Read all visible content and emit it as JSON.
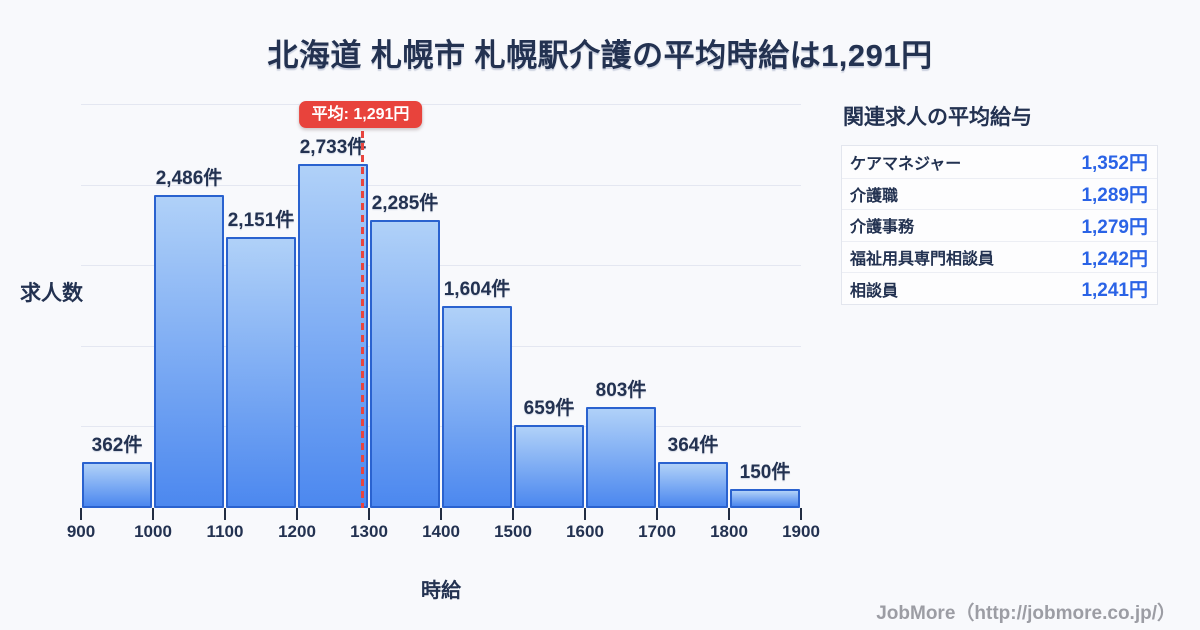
{
  "title": "北海道 札幌市 札幌駅介護の平均時給は1,291円",
  "chart_data": {
    "type": "bar",
    "subtype": "histogram",
    "title": "北海道 札幌市 札幌駅介護の平均時給は1,291円",
    "xlabel": "時給",
    "ylabel": "求人数",
    "bin_edges": [
      900,
      1000,
      1100,
      1200,
      1300,
      1400,
      1500,
      1600,
      1700,
      1800,
      1900
    ],
    "x_tick_labels": [
      "900",
      "1000",
      "1100",
      "1200",
      "1300",
      "1400",
      "1500",
      "1600",
      "1700",
      "1800",
      "1900"
    ],
    "values": [
      362,
      2486,
      2151,
      2733,
      2285,
      1604,
      659,
      803,
      364,
      150
    ],
    "bar_labels": [
      "362件",
      "2,486件",
      "2,151件",
      "2,733件",
      "2,285件",
      "1,604件",
      "659件",
      "803件",
      "364件",
      "150件"
    ],
    "ylim": [
      0,
      3200
    ],
    "gridline_step": 640,
    "grid": "horizontal",
    "legend": "none",
    "mean_line": {
      "value": 1291,
      "label": "平均: 1,291円"
    },
    "colors": {
      "bar_gradient_top": "#b0d1f8",
      "bar_gradient_bottom": "#4c88ef",
      "bar_border": "#2a62cf",
      "mean_line": "#e8453f",
      "mean_badge_bg": "#e8433c",
      "grid": "#e4e7f1",
      "text": "#233251"
    }
  },
  "related_jobs": {
    "heading": "関連求人の平均給与",
    "rows": [
      {
        "label": "ケアマネジャー",
        "value": "1,352円"
      },
      {
        "label": "介護職",
        "value": "1,289円"
      },
      {
        "label": "介護事務",
        "value": "1,279円"
      },
      {
        "label": "福祉用具専門相談員",
        "value": "1,242円"
      },
      {
        "label": "相談員",
        "value": "1,241円"
      }
    ],
    "value_color": "#2a63e6"
  },
  "footer": {
    "credit": "JobMore（http://jobmore.co.jp/）"
  }
}
